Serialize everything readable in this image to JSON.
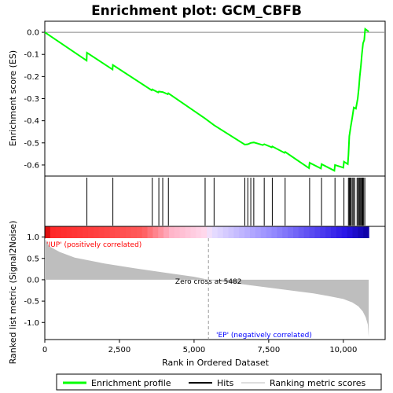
{
  "chart_data": {
    "type": "line",
    "title": "Enrichment plot: GCM_CBFB",
    "x_label": "Rank in Ordered Dataset",
    "es_panel": {
      "ylabel": "Enrichment score (ES)",
      "ylim": [
        -0.65,
        0.05
      ],
      "yticks": [
        "0.0",
        "-0.1",
        "-0.2",
        "-0.3",
        "-0.4",
        "-0.5",
        "-0.6"
      ],
      "ytick_values": [
        0.0,
        -0.1,
        -0.2,
        -0.3,
        -0.4,
        -0.5,
        -0.6
      ],
      "color": "#00ff00",
      "points": [
        [
          0,
          0.0
        ],
        [
          1400,
          -0.128
        ],
        [
          1410,
          -0.092
        ],
        [
          2270,
          -0.168
        ],
        [
          2280,
          -0.148
        ],
        [
          3580,
          -0.262
        ],
        [
          3600,
          -0.258
        ],
        [
          3800,
          -0.272
        ],
        [
          3820,
          -0.268
        ],
        [
          3950,
          -0.27
        ],
        [
          4120,
          -0.28
        ],
        [
          4140,
          -0.276
        ],
        [
          5370,
          -0.39
        ],
        [
          5670,
          -0.42
        ],
        [
          6700,
          -0.508
        ],
        [
          6800,
          -0.506
        ],
        [
          6900,
          -0.5
        ],
        [
          7000,
          -0.498
        ],
        [
          7300,
          -0.51
        ],
        [
          7350,
          -0.506
        ],
        [
          7600,
          -0.52
        ],
        [
          7620,
          -0.516
        ],
        [
          8030,
          -0.545
        ],
        [
          8050,
          -0.541
        ],
        [
          8850,
          -0.614
        ],
        [
          8870,
          -0.59
        ],
        [
          9250,
          -0.616
        ],
        [
          9270,
          -0.596
        ],
        [
          9700,
          -0.626
        ],
        [
          9720,
          -0.6
        ],
        [
          10000,
          -0.612
        ],
        [
          10020,
          -0.585
        ],
        [
          10150,
          -0.596
        ],
        [
          10170,
          -0.555
        ],
        [
          10200,
          -0.47
        ],
        [
          10250,
          -0.425
        ],
        [
          10300,
          -0.385
        ],
        [
          10350,
          -0.34
        ],
        [
          10420,
          -0.345
        ],
        [
          10480,
          -0.3
        ],
        [
          10520,
          -0.25
        ],
        [
          10550,
          -0.2
        ],
        [
          10590,
          -0.15
        ],
        [
          10620,
          -0.1
        ],
        [
          10660,
          -0.05
        ],
        [
          10700,
          -0.035
        ],
        [
          10730,
          0.015
        ],
        [
          10850,
          0.003
        ]
      ]
    },
    "hits": [
      1410,
      2280,
      3600,
      3820,
      3950,
      4140,
      5370,
      5670,
      6700,
      6800,
      6900,
      7000,
      7350,
      7620,
      8050,
      8870,
      9270,
      9720,
      10020,
      10170,
      10200,
      10230,
      10260,
      10300,
      10340,
      10380,
      10460,
      10500,
      10530,
      10560,
      10590,
      10620,
      10650,
      10680,
      10720
    ],
    "metric_panel": {
      "ylabel": "Ranked list metric (Signal2Noise)",
      "ylim": [
        -1.4,
        1.25
      ],
      "yticks": [
        "1.0",
        "0.5",
        "0.0",
        "-0.5",
        "-1.0"
      ],
      "ytick_values": [
        1.0,
        0.5,
        0.0,
        -0.5,
        -1.0
      ],
      "fill_color": "#bebebe",
      "profile": [
        [
          0,
          0.97
        ],
        [
          150,
          0.78
        ],
        [
          500,
          0.65
        ],
        [
          1000,
          0.52
        ],
        [
          2000,
          0.38
        ],
        [
          3000,
          0.27
        ],
        [
          4000,
          0.17
        ],
        [
          5000,
          0.07
        ],
        [
          5482,
          0.0
        ],
        [
          6000,
          -0.05
        ],
        [
          7000,
          -0.14
        ],
        [
          8000,
          -0.23
        ],
        [
          9000,
          -0.32
        ],
        [
          9500,
          -0.38
        ],
        [
          10000,
          -0.45
        ],
        [
          10300,
          -0.53
        ],
        [
          10500,
          -0.62
        ],
        [
          10650,
          -0.74
        ],
        [
          10750,
          -0.88
        ],
        [
          10820,
          -1.05
        ],
        [
          10850,
          -1.35
        ]
      ],
      "zero_cross_label": "Zero cross at 5482",
      "zero_cross_rank": 5482,
      "pos_label": "'IUP' (positively correlated)",
      "neg_label": "'EP' (negatively correlated)",
      "pos_color": "#ff0000",
      "neg_color": "#0000ff"
    },
    "xlim": [
      0,
      11400
    ],
    "xticks": [
      "0",
      "2,500",
      "5,000",
      "7,500",
      "10,000"
    ],
    "xtick_values": [
      0,
      2500,
      5000,
      7500,
      10000
    ],
    "dataset_size": 10850,
    "legend": {
      "placement": "bottom",
      "items": [
        {
          "label": "Enrichment profile",
          "color": "#00ff00"
        },
        {
          "label": "Hits",
          "color": "#000000"
        },
        {
          "label": "Ranking metric scores",
          "color": "#bebebe"
        }
      ]
    }
  }
}
